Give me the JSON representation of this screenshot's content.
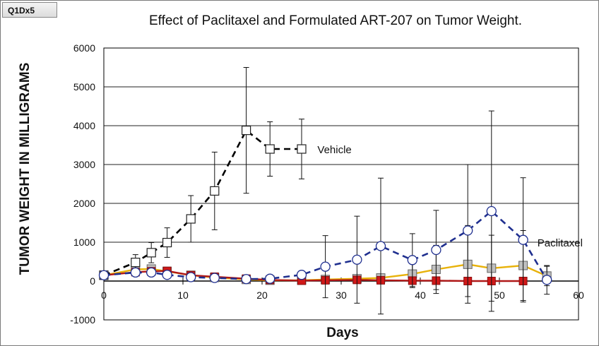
{
  "badge": "Q1Dx5",
  "chart_data": {
    "type": "line",
    "title": "Effect of Paclitaxel and Formulated ART-207 on Tumor Weight.",
    "xlabel": "Days",
    "ylabel": "TUMOR  WEIGHT  IN  MILLIGRAMS",
    "xlim": [
      0,
      60
    ],
    "ylim": [
      -1000,
      6000
    ],
    "x_ticks": [
      "0",
      "10",
      "20",
      "30",
      "40",
      "50",
      "60"
    ],
    "y_ticks": [
      "-1000",
      "0",
      "1000",
      "2000",
      "3000",
      "4000",
      "5000",
      "6000"
    ],
    "grid": "horizontal",
    "annotations": [
      "Vehicle",
      "Paclitaxel"
    ],
    "series": [
      {
        "name": "Vehicle",
        "color": "#000000",
        "line_style": "dashed",
        "marker": "square-open",
        "points": [
          {
            "x": 0,
            "y": 150,
            "err": 0
          },
          {
            "x": 4,
            "y": 480,
            "err": 200
          },
          {
            "x": 6,
            "y": 730,
            "err": 260
          },
          {
            "x": 8,
            "y": 990,
            "err": 380
          },
          {
            "x": 11,
            "y": 1600,
            "err": 600
          },
          {
            "x": 14,
            "y": 2320,
            "err": 1000
          },
          {
            "x": 18,
            "y": 3880,
            "err": 1620
          },
          {
            "x": 21,
            "y": 3400,
            "err": 700
          },
          {
            "x": 25,
            "y": 3400,
            "err": 770
          }
        ]
      },
      {
        "name": "Paclitaxel",
        "color": "#1f2f8f",
        "line_style": "dashed",
        "marker": "circle-open",
        "points": [
          {
            "x": 0,
            "y": 150,
            "err": 0
          },
          {
            "x": 4,
            "y": 220,
            "err": 0
          },
          {
            "x": 6,
            "y": 220,
            "err": 0
          },
          {
            "x": 8,
            "y": 160,
            "err": 0
          },
          {
            "x": 11,
            "y": 100,
            "err": 0
          },
          {
            "x": 14,
            "y": 80,
            "err": 0
          },
          {
            "x": 18,
            "y": 50,
            "err": 0
          },
          {
            "x": 21,
            "y": 60,
            "err": 0
          },
          {
            "x": 25,
            "y": 160,
            "err": 0
          },
          {
            "x": 28,
            "y": 370,
            "err": 800
          },
          {
            "x": 32,
            "y": 550,
            "err": 1120
          },
          {
            "x": 35,
            "y": 900,
            "err": 1750
          },
          {
            "x": 39,
            "y": 540,
            "err": 680
          },
          {
            "x": 42,
            "y": 800,
            "err": 1020
          },
          {
            "x": 46,
            "y": 1300,
            "err": 1700
          },
          {
            "x": 49,
            "y": 1800,
            "err": 2580
          },
          {
            "x": 53,
            "y": 1060,
            "err": 1600
          },
          {
            "x": 56,
            "y": 30,
            "err": 370
          }
        ]
      },
      {
        "name": "",
        "color": "#e8b20a",
        "line_style": "solid",
        "marker": "square-gray",
        "points": [
          {
            "x": 0,
            "y": 150,
            "err": 0
          },
          {
            "x": 4,
            "y": 300,
            "err": 0
          },
          {
            "x": 6,
            "y": 310,
            "err": 0
          },
          {
            "x": 8,
            "y": 250,
            "err": 0
          },
          {
            "x": 11,
            "y": 150,
            "err": 0
          },
          {
            "x": 14,
            "y": 90,
            "err": 0
          },
          {
            "x": 18,
            "y": 40,
            "err": 0
          },
          {
            "x": 21,
            "y": 20,
            "err": 0
          },
          {
            "x": 25,
            "y": 20,
            "err": 0
          },
          {
            "x": 28,
            "y": 40,
            "err": 0
          },
          {
            "x": 32,
            "y": 60,
            "err": 0
          },
          {
            "x": 35,
            "y": 80,
            "err": 0
          },
          {
            "x": 39,
            "y": 180,
            "err": 350
          },
          {
            "x": 42,
            "y": 300,
            "err": 620
          },
          {
            "x": 46,
            "y": 430,
            "err": 1000
          },
          {
            "x": 49,
            "y": 330,
            "err": 850
          },
          {
            "x": 53,
            "y": 400,
            "err": 900
          },
          {
            "x": 56,
            "y": 130,
            "err": 250
          }
        ]
      },
      {
        "name": "",
        "color": "#b01818",
        "line_style": "solid",
        "marker": "square-red",
        "points": [
          {
            "x": 0,
            "y": 150,
            "err": 0
          },
          {
            "x": 4,
            "y": 230,
            "err": 0
          },
          {
            "x": 6,
            "y": 250,
            "err": 0
          },
          {
            "x": 8,
            "y": 260,
            "err": 0
          },
          {
            "x": 11,
            "y": 150,
            "err": 0
          },
          {
            "x": 14,
            "y": 110,
            "err": 0
          },
          {
            "x": 18,
            "y": 60,
            "err": 0
          },
          {
            "x": 21,
            "y": 30,
            "err": 0
          },
          {
            "x": 25,
            "y": 10,
            "err": 0
          },
          {
            "x": 28,
            "y": 20,
            "err": 0
          },
          {
            "x": 32,
            "y": 30,
            "err": 0
          },
          {
            "x": 35,
            "y": 20,
            "err": 0
          },
          {
            "x": 39,
            "y": 10,
            "err": 0
          },
          {
            "x": 42,
            "y": 10,
            "err": 0
          },
          {
            "x": 46,
            "y": 0,
            "err": 0
          },
          {
            "x": 49,
            "y": 0,
            "err": 0
          },
          {
            "x": 53,
            "y": 0,
            "err": 0
          }
        ]
      }
    ]
  }
}
